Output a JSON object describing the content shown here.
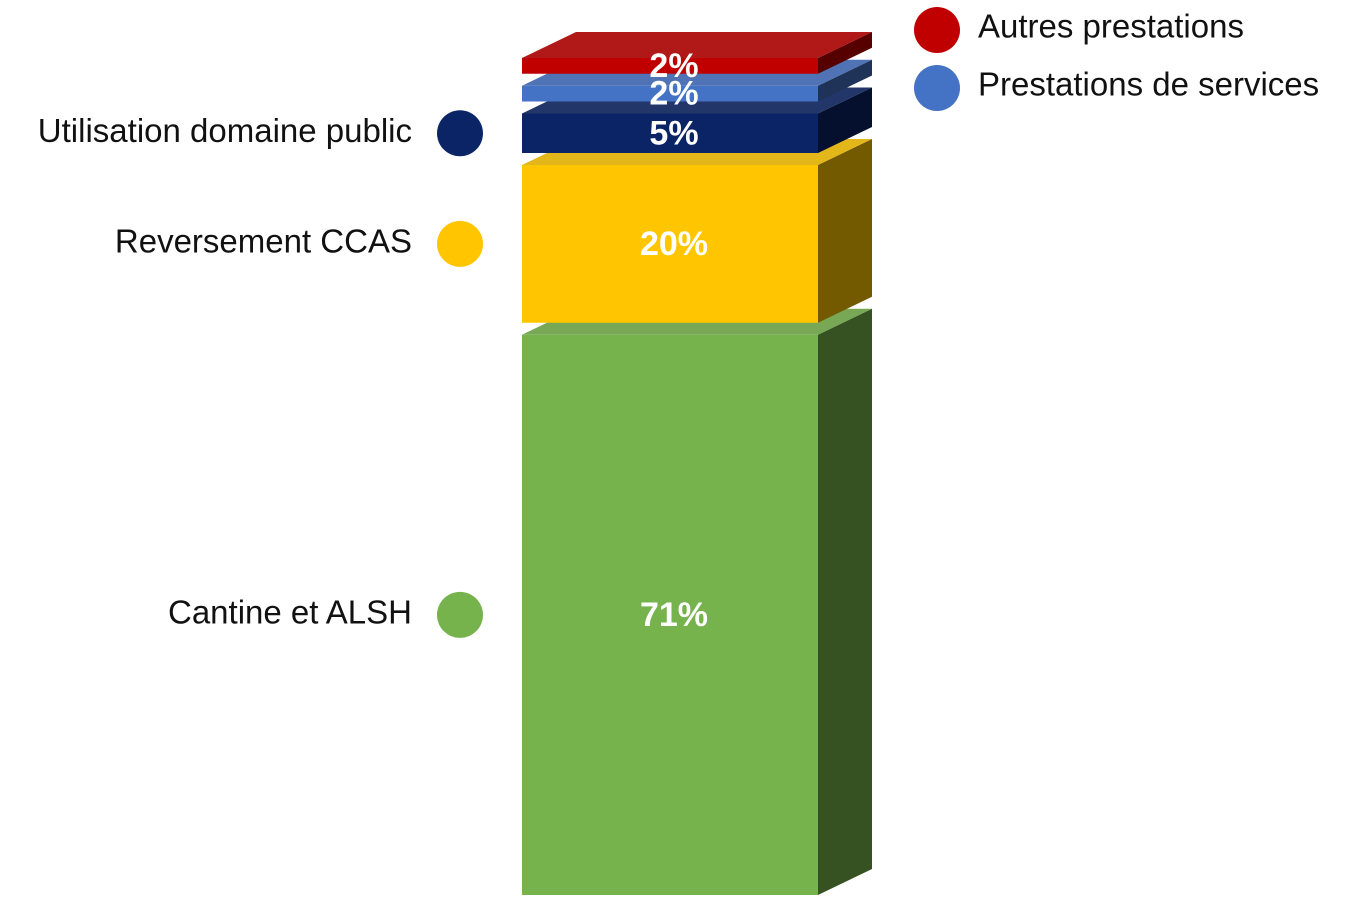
{
  "chart_data": {
    "type": "bar",
    "stacked": true,
    "categories": [
      null
    ],
    "series": [
      {
        "name": "Cantine et ALSH",
        "color": "#77b34c",
        "values": [
          71
        ],
        "value_labels": [
          "71%"
        ]
      },
      {
        "name": "Reversement CCAS",
        "color": "#ffc600",
        "values": [
          20
        ],
        "value_labels": [
          "20%"
        ]
      },
      {
        "name": "Utilisation domaine public",
        "color": "#0b2466",
        "values": [
          5
        ],
        "value_labels": [
          "5%"
        ]
      },
      {
        "name": "Prestations de services",
        "color": "#4472c4",
        "values": [
          2
        ],
        "value_labels": [
          "2%"
        ]
      },
      {
        "name": "Autres prestations",
        "color": "#c00000",
        "values": [
          2
        ],
        "value_labels": [
          "2%"
        ]
      }
    ]
  }
}
